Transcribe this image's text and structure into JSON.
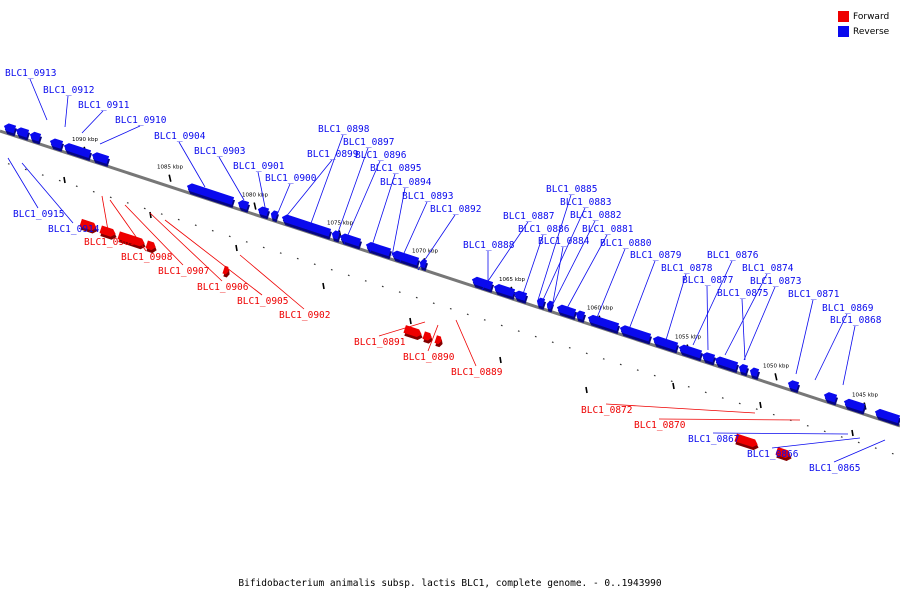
{
  "legend": {
    "forward_label": "Forward",
    "reverse_label": "Reverse",
    "forward_color": "#ee0000",
    "reverse_color": "#0a0aee"
  },
  "caption": "Bifidobacterium animalis subsp. lactis BLC1, complete genome. - 0..1943990",
  "scale_ticks": [
    "1090 kbp",
    "1085 kbp",
    "1080 kbp",
    "1075 kbp",
    "1070 kbp",
    "1065 kbp",
    "1060 kbp",
    "1055 kbp",
    "1050 kbp",
    "1045 kbp"
  ],
  "genes": [
    {
      "label": "BLC1_0913",
      "strand": "reverse"
    },
    {
      "label": "BLC1_0912",
      "strand": "reverse"
    },
    {
      "label": "BLC1_0911",
      "strand": "reverse"
    },
    {
      "label": "BLC1_0910",
      "strand": "reverse"
    },
    {
      "label": "BLC1_0904",
      "strand": "reverse"
    },
    {
      "label": "BLC1_0903",
      "strand": "reverse"
    },
    {
      "label": "BLC1_0901",
      "strand": "reverse"
    },
    {
      "label": "BLC1_0900",
      "strand": "reverse"
    },
    {
      "label": "BLC1_0899",
      "strand": "reverse"
    },
    {
      "label": "BLC1_0898",
      "strand": "reverse"
    },
    {
      "label": "BLC1_0897",
      "strand": "reverse"
    },
    {
      "label": "BLC1_0896",
      "strand": "reverse"
    },
    {
      "label": "BLC1_0895",
      "strand": "reverse"
    },
    {
      "label": "BLC1_0894",
      "strand": "reverse"
    },
    {
      "label": "BLC1_0893",
      "strand": "reverse"
    },
    {
      "label": "BLC1_0892",
      "strand": "reverse"
    },
    {
      "label": "BLC1_0885",
      "strand": "reverse"
    },
    {
      "label": "BLC1_0883",
      "strand": "reverse"
    },
    {
      "label": "BLC1_0887",
      "strand": "reverse"
    },
    {
      "label": "BLC1_0882",
      "strand": "reverse"
    },
    {
      "label": "BLC1_0886",
      "strand": "reverse"
    },
    {
      "label": "BLC1_0881",
      "strand": "reverse"
    },
    {
      "label": "BLC1_0884",
      "strand": "reverse"
    },
    {
      "label": "BLC1_0880",
      "strand": "reverse"
    },
    {
      "label": "BLC1_0888",
      "strand": "reverse"
    },
    {
      "label": "BLC1_0879",
      "strand": "reverse"
    },
    {
      "label": "BLC1_0876",
      "strand": "reverse"
    },
    {
      "label": "BLC1_0878",
      "strand": "reverse"
    },
    {
      "label": "BLC1_0874",
      "strand": "reverse"
    },
    {
      "label": "BLC1_0877",
      "strand": "reverse"
    },
    {
      "label": "BLC1_0873",
      "strand": "reverse"
    },
    {
      "label": "BLC1_0875",
      "strand": "reverse"
    },
    {
      "label": "BLC1_0871",
      "strand": "reverse"
    },
    {
      "label": "BLC1_0869",
      "strand": "reverse"
    },
    {
      "label": "BLC1_0868",
      "strand": "reverse"
    },
    {
      "label": "BLC1_0915",
      "strand": "reverse"
    },
    {
      "label": "BLC1_0914",
      "strand": "reverse"
    },
    {
      "label": "BLC1_0909",
      "strand": "forward"
    },
    {
      "label": "BLC1_0908",
      "strand": "forward"
    },
    {
      "label": "BLC1_0907",
      "strand": "forward"
    },
    {
      "label": "BLC1_0906",
      "strand": "forward"
    },
    {
      "label": "BLC1_0905",
      "strand": "forward"
    },
    {
      "label": "BLC1_0902",
      "strand": "forward"
    },
    {
      "label": "BLC1_0891",
      "strand": "forward"
    },
    {
      "label": "BLC1_0890",
      "strand": "forward"
    },
    {
      "label": "BLC1_0889",
      "strand": "forward"
    },
    {
      "label": "BLC1_0872",
      "strand": "forward"
    },
    {
      "label": "BLC1_0870",
      "strand": "forward"
    },
    {
      "label": "BLC1_0867",
      "strand": "reverse"
    },
    {
      "label": "BLC1_0866",
      "strand": "reverse"
    },
    {
      "label": "BLC1_0865",
      "strand": "reverse"
    }
  ]
}
